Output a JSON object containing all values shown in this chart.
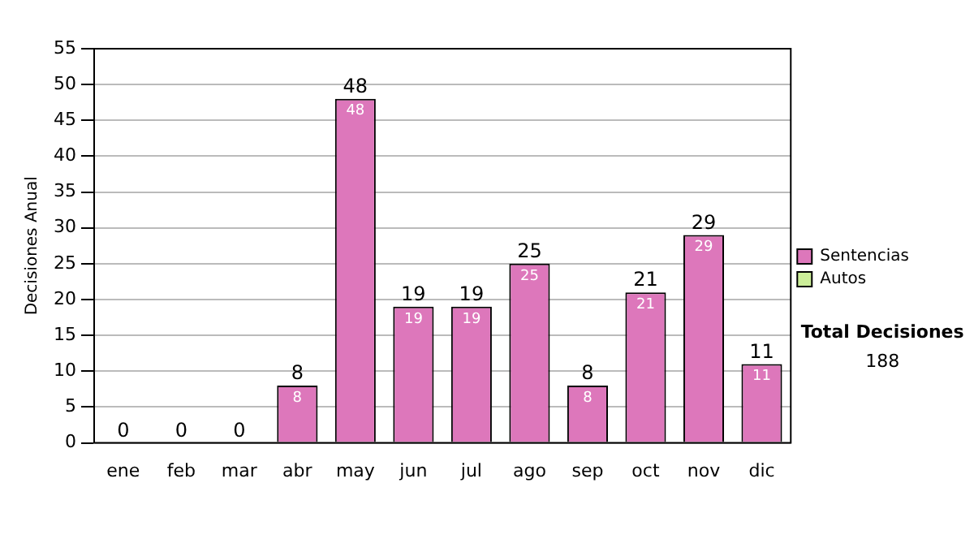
{
  "chart_data": {
    "type": "bar",
    "ylabel": "Decisiones Anual",
    "categories": [
      "ene",
      "feb",
      "mar",
      "abr",
      "may",
      "jun",
      "jul",
      "ago",
      "sep",
      "oct",
      "nov",
      "dic"
    ],
    "series": [
      {
        "name": "Sentencias",
        "color": "#dd77bb",
        "values": [
          0,
          0,
          0,
          8,
          48,
          19,
          19,
          25,
          8,
          21,
          29,
          11
        ],
        "value_labels": [
          null,
          null,
          null,
          "8",
          "48",
          "19",
          "19",
          "25",
          "8",
          "21",
          "29",
          "11"
        ]
      },
      {
        "name": "Autos",
        "color": "#ccee99",
        "values": [
          0,
          0,
          0,
          0,
          0,
          0,
          0,
          0,
          0,
          0,
          0,
          0
        ]
      }
    ],
    "stacked": true,
    "totals": [
      "0",
      "0",
      "0",
      "8",
      "48",
      "19",
      "19",
      "25",
      "8",
      "21",
      "29",
      "11"
    ],
    "ylim": [
      0,
      55
    ],
    "yticks": [
      0,
      5,
      10,
      15,
      20,
      25,
      30,
      35,
      40,
      45,
      50,
      55
    ],
    "grid": "y",
    "legend": "right",
    "annotations": [
      "Total Decisiones",
      "188"
    ]
  }
}
